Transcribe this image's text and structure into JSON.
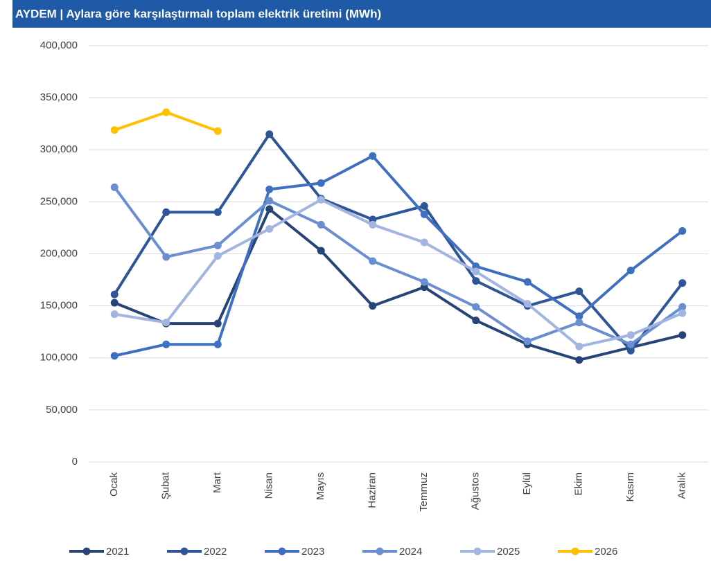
{
  "chart_data": {
    "type": "line",
    "title": "AYDEM | Aylara göre karşılaştırmalı toplam elektrik üretimi (MWh)",
    "categories": [
      "Ocak",
      "Şubat",
      "Mart",
      "Nisan",
      "Mayıs",
      "Haziran",
      "Temmuz",
      "Ağustos",
      "Eylül",
      "Ekim",
      "Kasım",
      "Aralık"
    ],
    "series": [
      {
        "name": "2021",
        "color": "#264478",
        "values": [
          153000,
          133000,
          133000,
          243000,
          203000,
          150000,
          168000,
          136000,
          113000,
          98000,
          110000,
          122000
        ]
      },
      {
        "name": "2022",
        "color": "#2e5597",
        "values": [
          161000,
          240000,
          240000,
          315000,
          253000,
          233000,
          246000,
          174000,
          150000,
          164000,
          107000,
          172000
        ]
      },
      {
        "name": "2023",
        "color": "#3f6fc0",
        "values": [
          102000,
          113000,
          113000,
          262000,
          268000,
          294000,
          238000,
          188000,
          173000,
          140000,
          184000,
          222000
        ]
      },
      {
        "name": "2024",
        "color": "#6b8ed3",
        "values": [
          264000,
          197000,
          208000,
          251000,
          228000,
          193000,
          173000,
          149000,
          116000,
          134000,
          113000,
          149000
        ]
      },
      {
        "name": "2025",
        "color": "#a2b4e0",
        "values": [
          142000,
          134000,
          198000,
          224000,
          252000,
          228000,
          211000,
          183000,
          152000,
          111000,
          122000,
          143000
        ]
      },
      {
        "name": "2026",
        "color": "#ffc000",
        "values": [
          319000,
          336000,
          318000,
          null,
          null,
          null,
          null,
          null,
          null,
          null,
          null,
          null
        ]
      }
    ],
    "ylim": [
      0,
      400000
    ],
    "yticks": [
      0,
      {
        "value": 50000,
        "label": "50,000"
      },
      {
        "value": 100000,
        "label": "100,000"
      },
      {
        "value": 150000,
        "label": "150,000"
      },
      {
        "value": 200000,
        "label": "200,000"
      },
      {
        "value": 250000,
        "label": "250,000"
      },
      {
        "value": 300000,
        "label": "300,000"
      },
      {
        "value": 350000,
        "label": "350,000"
      },
      {
        "value": 400000,
        "label": "400,000"
      }
    ],
    "grid": true,
    "legend": "bottom"
  }
}
